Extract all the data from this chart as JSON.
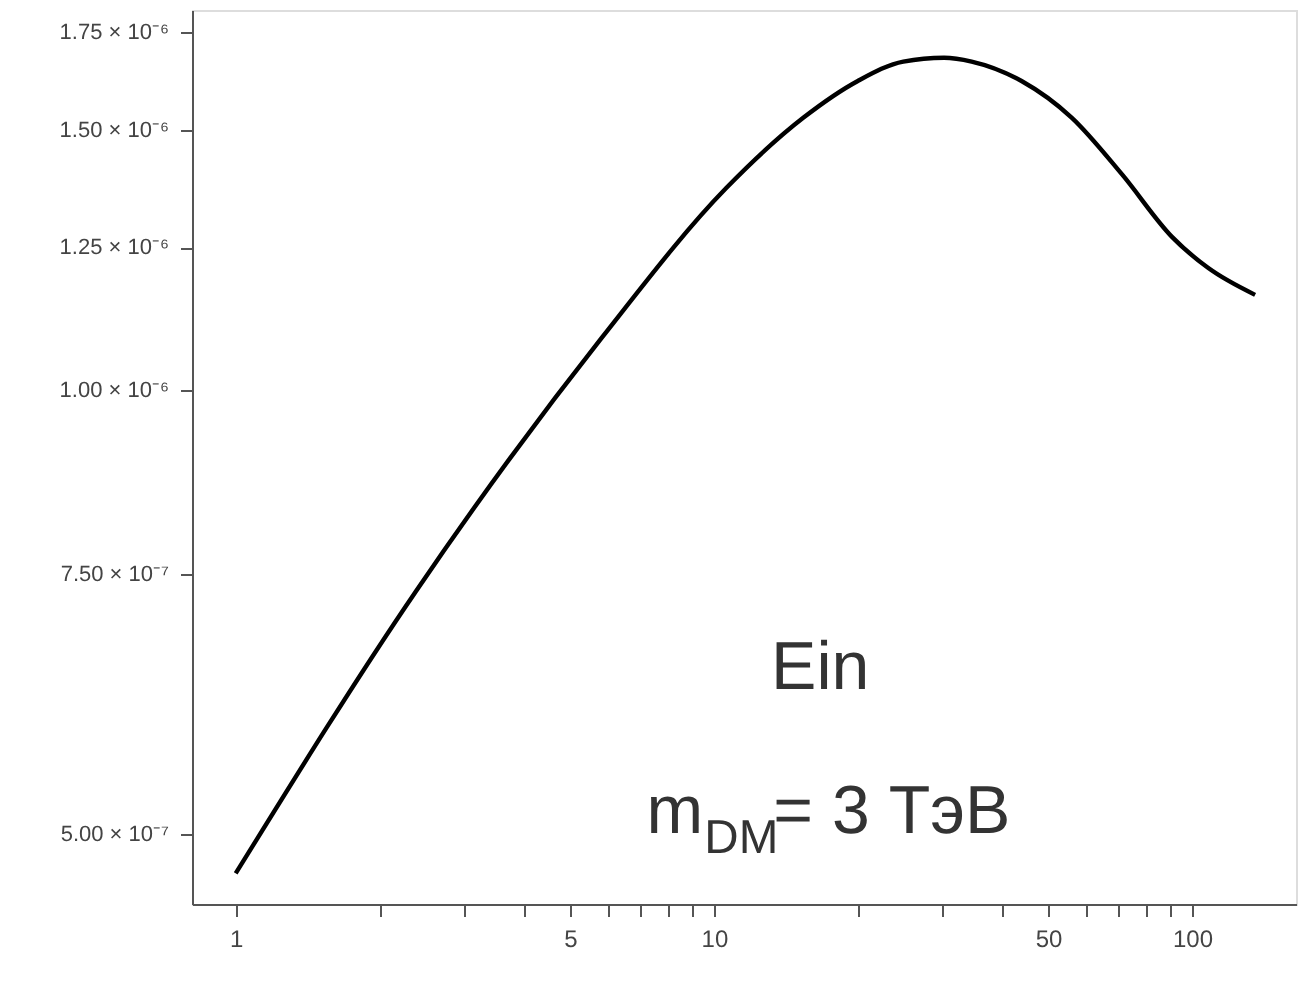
{
  "chart_data": {
    "type": "line",
    "log": "xy",
    "grid": false,
    "marker": "none",
    "line_style": "solid",
    "x": [
      1,
      2.38,
      5.83,
      10.6,
      15.4,
      20,
      24.9,
      30.3,
      34.6,
      44,
      56,
      71.4,
      90.8,
      108,
      135.5
    ],
    "series": [
      {
        "color": "#000000",
        "values": [
          4.7e-07,
          7.3e-07,
          1.085e-06,
          1.37e-06,
          1.53e-06,
          1.62e-06,
          1.67e-06,
          1.68e-06,
          1.67e-06,
          1.62e-06,
          1.53e-06,
          1.4e-06,
          1.27e-06,
          1.21e-06,
          1.16e-06
        ]
      }
    ],
    "xlim": [
      0.81,
      165
    ],
    "xticks": [
      1,
      {
        "value": 2,
        "label": null
      },
      {
        "value": 3,
        "label": null
      },
      {
        "value": 4,
        "label": null
      },
      5,
      {
        "value": 6,
        "label": null
      },
      {
        "value": 7,
        "label": null
      },
      {
        "value": 8,
        "label": null
      },
      {
        "value": 9,
        "label": null
      },
      10,
      {
        "value": 20,
        "label": null
      },
      {
        "value": 30,
        "label": null
      },
      {
        "value": 40,
        "label": null
      },
      50,
      {
        "value": 60,
        "label": null
      },
      {
        "value": 70,
        "label": null
      },
      {
        "value": 80,
        "label": null
      },
      {
        "value": 90,
        "label": null
      },
      100
    ],
    "ylim": [
      4.48e-07,
      1.81e-06
    ],
    "yticks": [
      {
        "value": 5e-07,
        "label": "5.00 × 10⁻⁷"
      },
      {
        "value": 7.5e-07,
        "label": "7.50 × 10⁻⁷"
      },
      {
        "value": 1e-06,
        "label": "1.00 × 10⁻⁶"
      },
      {
        "value": 1.25e-06,
        "label": "1.25 × 10⁻⁶"
      },
      {
        "value": 1.5e-06,
        "label": "1.50 × 10⁻⁶"
      },
      {
        "value": 1.75e-06,
        "label": "1.75 × 10⁻⁶"
      }
    ],
    "annotations": [
      "Ein",
      "m$_{DM}$= 3 ТэВ"
    ]
  }
}
